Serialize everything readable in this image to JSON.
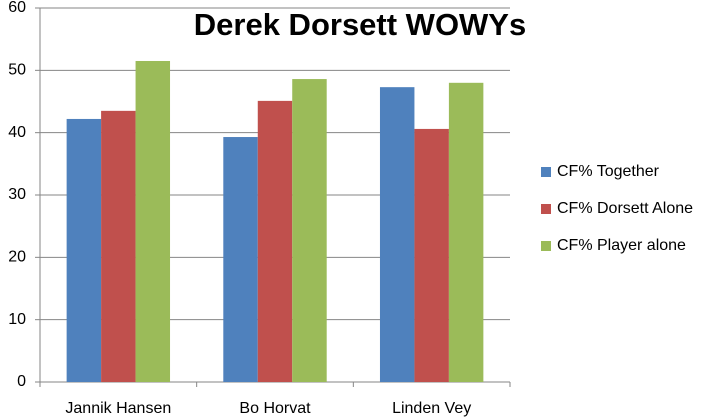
{
  "chart_data": {
    "type": "bar",
    "title": "Derek Dorsett WOWYs",
    "categories": [
      "Jannik Hansen",
      "Bo Horvat",
      "Linden Vey"
    ],
    "series": [
      {
        "name": "CF% Together",
        "color": "#4f81bd",
        "values": [
          42.2,
          39.3,
          47.3
        ]
      },
      {
        "name": "CF% Dorsett Alone",
        "color": "#c0504d",
        "values": [
          43.5,
          45.1,
          40.6
        ]
      },
      {
        "name": "CF% Player alone",
        "color": "#9bbb59",
        "values": [
          51.5,
          48.6,
          48.0
        ]
      }
    ],
    "ylim": [
      0,
      60
    ],
    "yticks": [
      0,
      10,
      20,
      30,
      40,
      50,
      60
    ],
    "grid": true,
    "legend": "right"
  }
}
